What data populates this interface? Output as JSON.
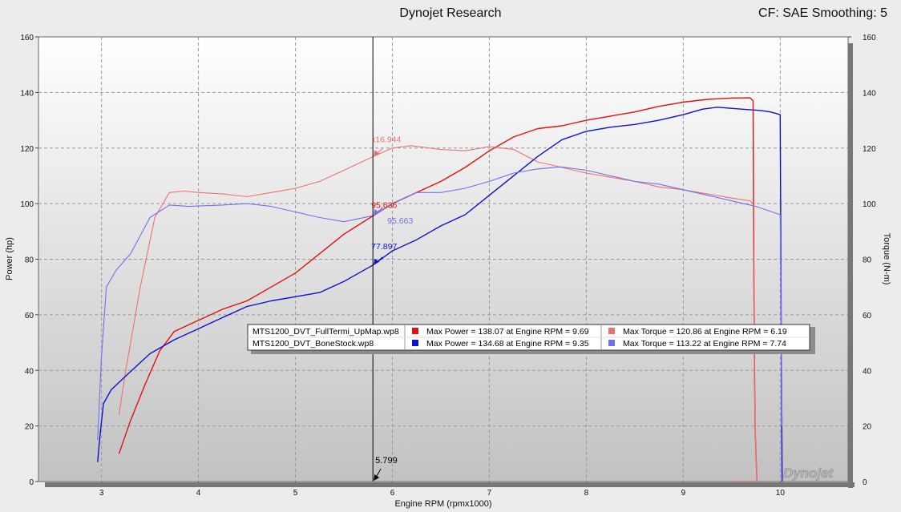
{
  "header": {
    "title": "Dynojet Research",
    "settings": "CF: SAE Smoothing: 5"
  },
  "watermark": "Dynojet",
  "colors": {
    "run1_power": "#e01010",
    "run1_torque": "#f07070",
    "run2_power": "#1010d0",
    "run2_torque": "#7070f0",
    "cursor": "#000000",
    "plot_bg_top": "#ffffff",
    "plot_bg_bottom": "#c4c4c4"
  },
  "cursor": {
    "rpm": 5.799,
    "label": "5.799",
    "markers": [
      {
        "series": "run1_torque",
        "value": 116.944,
        "label": "116.944",
        "axis": "torque"
      },
      {
        "series": "run1_power",
        "value": 95.636,
        "label": "95.636",
        "axis": "power"
      },
      {
        "series": "run2_torque",
        "value": 95.663,
        "label": "95.663",
        "axis": "torque"
      },
      {
        "series": "run2_power",
        "value": 77.897,
        "label": "77.897",
        "axis": "power"
      }
    ]
  },
  "legend": {
    "runs": [
      {
        "file": "MTS1200_DVT_FullTermi_UpMap.wp8",
        "power_color": "#e01010",
        "torque_color": "#f07070",
        "max_power": "Max Power = 138.07 at Engine RPM = 9.69",
        "max_torque": "Max Torque = 120.86 at Engine RPM = 6.19"
      },
      {
        "file": "MTS1200_DVT_BoneStock.wp8",
        "power_color": "#1010d0",
        "torque_color": "#7070f0",
        "max_power": "Max Power = 134.68 at Engine RPM = 9.35",
        "max_torque": "Max Torque = 113.22 at Engine RPM = 7.74"
      }
    ]
  },
  "chart_data": {
    "type": "line",
    "xlabel": "Engine RPM (rpmx1000)",
    "ylabel_left": "Power (hp)",
    "ylabel_right": "Torque (N-m)",
    "xlim": [
      2.35,
      10.7
    ],
    "ylim": [
      0,
      160
    ],
    "x_ticks": [
      3,
      4,
      5,
      6,
      7,
      8,
      9,
      10
    ],
    "y_ticks": [
      0,
      20,
      40,
      60,
      80,
      100,
      120,
      140,
      160
    ],
    "grid": true,
    "series": [
      {
        "name": "MTS1200_DVT_FullTermi_UpMap.wp8 Power",
        "key": "run1_power",
        "points": [
          [
            3.18,
            10
          ],
          [
            3.3,
            22
          ],
          [
            3.45,
            35
          ],
          [
            3.6,
            47
          ],
          [
            3.75,
            54
          ],
          [
            4.0,
            58
          ],
          [
            4.25,
            62
          ],
          [
            4.5,
            65
          ],
          [
            4.75,
            70
          ],
          [
            5.0,
            75
          ],
          [
            5.25,
            82
          ],
          [
            5.5,
            89
          ],
          [
            5.8,
            95.6
          ],
          [
            6.0,
            100
          ],
          [
            6.25,
            104
          ],
          [
            6.5,
            108
          ],
          [
            6.75,
            113
          ],
          [
            7.0,
            119
          ],
          [
            7.25,
            124
          ],
          [
            7.5,
            127
          ],
          [
            7.75,
            128
          ],
          [
            8.0,
            130
          ],
          [
            8.25,
            131.5
          ],
          [
            8.5,
            133
          ],
          [
            8.75,
            135
          ],
          [
            9.0,
            136.5
          ],
          [
            9.25,
            137.5
          ],
          [
            9.5,
            138
          ],
          [
            9.69,
            138.07
          ],
          [
            9.72,
            137
          ],
          [
            9.73,
            60
          ],
          [
            9.74,
            20
          ],
          [
            9.76,
            0
          ],
          [
            9.5,
            0
          ]
        ]
      },
      {
        "name": "MTS1200_DVT_FullTermi_UpMap.wp8 Torque",
        "key": "run1_torque",
        "points": [
          [
            3.18,
            24
          ],
          [
            3.25,
            40
          ],
          [
            3.4,
            70
          ],
          [
            3.55,
            95
          ],
          [
            3.7,
            104
          ],
          [
            3.85,
            104.5
          ],
          [
            4.0,
            104
          ],
          [
            4.25,
            103.5
          ],
          [
            4.5,
            102.5
          ],
          [
            4.75,
            104
          ],
          [
            5.0,
            105.5
          ],
          [
            5.25,
            108
          ],
          [
            5.5,
            112
          ],
          [
            5.8,
            116.9
          ],
          [
            6.0,
            120
          ],
          [
            6.19,
            120.86
          ],
          [
            6.5,
            119.5
          ],
          [
            6.75,
            119
          ],
          [
            7.0,
            120.5
          ],
          [
            7.25,
            119.5
          ],
          [
            7.5,
            115
          ],
          [
            7.75,
            113
          ],
          [
            8.0,
            111
          ],
          [
            8.25,
            109.5
          ],
          [
            8.5,
            108
          ],
          [
            8.75,
            106
          ],
          [
            9.0,
            105
          ],
          [
            9.25,
            103.5
          ],
          [
            9.5,
            102
          ],
          [
            9.69,
            101
          ],
          [
            9.72,
            100
          ],
          [
            9.73,
            50
          ],
          [
            9.74,
            20
          ],
          [
            9.76,
            0
          ],
          [
            9.5,
            0
          ]
        ]
      },
      {
        "name": "MTS1200_DVT_BoneStock.wp8 Power",
        "key": "run2_power",
        "points": [
          [
            2.96,
            7
          ],
          [
            2.98,
            15
          ],
          [
            3.02,
            28
          ],
          [
            3.1,
            33
          ],
          [
            3.25,
            38
          ],
          [
            3.5,
            46
          ],
          [
            3.75,
            51
          ],
          [
            4.0,
            55
          ],
          [
            4.25,
            59
          ],
          [
            4.5,
            63
          ],
          [
            4.75,
            65
          ],
          [
            5.0,
            66.5
          ],
          [
            5.25,
            68
          ],
          [
            5.5,
            72
          ],
          [
            5.8,
            77.9
          ],
          [
            6.0,
            83
          ],
          [
            6.25,
            87
          ],
          [
            6.5,
            92
          ],
          [
            6.75,
            96
          ],
          [
            7.0,
            103
          ],
          [
            7.25,
            110
          ],
          [
            7.5,
            117
          ],
          [
            7.75,
            123
          ],
          [
            8.0,
            126
          ],
          [
            8.25,
            127.5
          ],
          [
            8.5,
            128.5
          ],
          [
            8.75,
            130
          ],
          [
            9.0,
            132
          ],
          [
            9.2,
            134
          ],
          [
            9.35,
            134.68
          ],
          [
            9.6,
            134
          ],
          [
            9.8,
            133.5
          ],
          [
            9.9,
            133
          ],
          [
            10.0,
            132
          ],
          [
            10.01,
            60
          ],
          [
            10.02,
            0
          ]
        ]
      },
      {
        "name": "MTS1200_DVT_BoneStock.wp8 Torque",
        "key": "run2_torque",
        "points": [
          [
            2.96,
            15
          ],
          [
            3.0,
            45
          ],
          [
            3.05,
            70
          ],
          [
            3.15,
            76
          ],
          [
            3.3,
            82
          ],
          [
            3.5,
            95
          ],
          [
            3.7,
            99.5
          ],
          [
            3.9,
            99
          ],
          [
            4.25,
            99.5
          ],
          [
            4.5,
            100
          ],
          [
            4.75,
            99
          ],
          [
            5.0,
            97
          ],
          [
            5.25,
            95
          ],
          [
            5.5,
            93.5
          ],
          [
            5.8,
            95.66
          ],
          [
            6.0,
            100
          ],
          [
            6.25,
            104
          ],
          [
            6.5,
            104
          ],
          [
            6.75,
            105.5
          ],
          [
            7.0,
            108
          ],
          [
            7.25,
            111
          ],
          [
            7.5,
            112.5
          ],
          [
            7.74,
            113.22
          ],
          [
            8.0,
            112
          ],
          [
            8.25,
            110
          ],
          [
            8.5,
            108
          ],
          [
            8.75,
            107
          ],
          [
            9.0,
            105
          ],
          [
            9.25,
            103
          ],
          [
            9.5,
            101
          ],
          [
            9.75,
            99
          ],
          [
            10.0,
            96
          ],
          [
            10.01,
            60
          ],
          [
            10.02,
            20
          ]
        ]
      }
    ]
  }
}
